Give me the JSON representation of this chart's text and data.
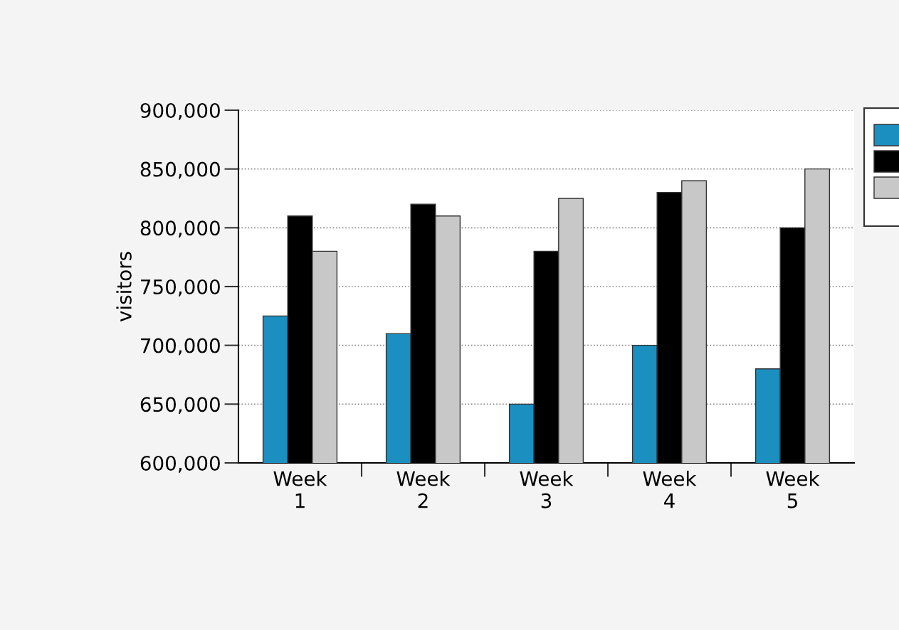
{
  "chart_data": {
    "type": "bar",
    "ylabel": "visitors",
    "categories": [
      "Week\n1",
      "Week\n2",
      "Week\n3",
      "Week\n4",
      "Week\n5"
    ],
    "series": [
      {
        "color": "#1a8fc0",
        "values": [
          725000,
          710000,
          650000,
          700000,
          680000
        ]
      },
      {
        "color": "#000000",
        "values": [
          810000,
          820000,
          780000,
          830000,
          800000
        ]
      },
      {
        "color": "#c8c8c8",
        "values": [
          780000,
          810000,
          825000,
          840000,
          850000
        ]
      }
    ],
    "ylim": [
      600000,
      900000
    ],
    "yticks": [
      {
        "value": 600000,
        "label": "600,000"
      },
      {
        "value": 650000,
        "label": "650,000"
      },
      {
        "value": 700000,
        "label": "700,000"
      },
      {
        "value": 750000,
        "label": "750,000"
      },
      {
        "value": 800000,
        "label": "800,000"
      },
      {
        "value": 850000,
        "label": "850,000"
      },
      {
        "value": 900000,
        "label": "900,000"
      }
    ],
    "grid": "y"
  }
}
